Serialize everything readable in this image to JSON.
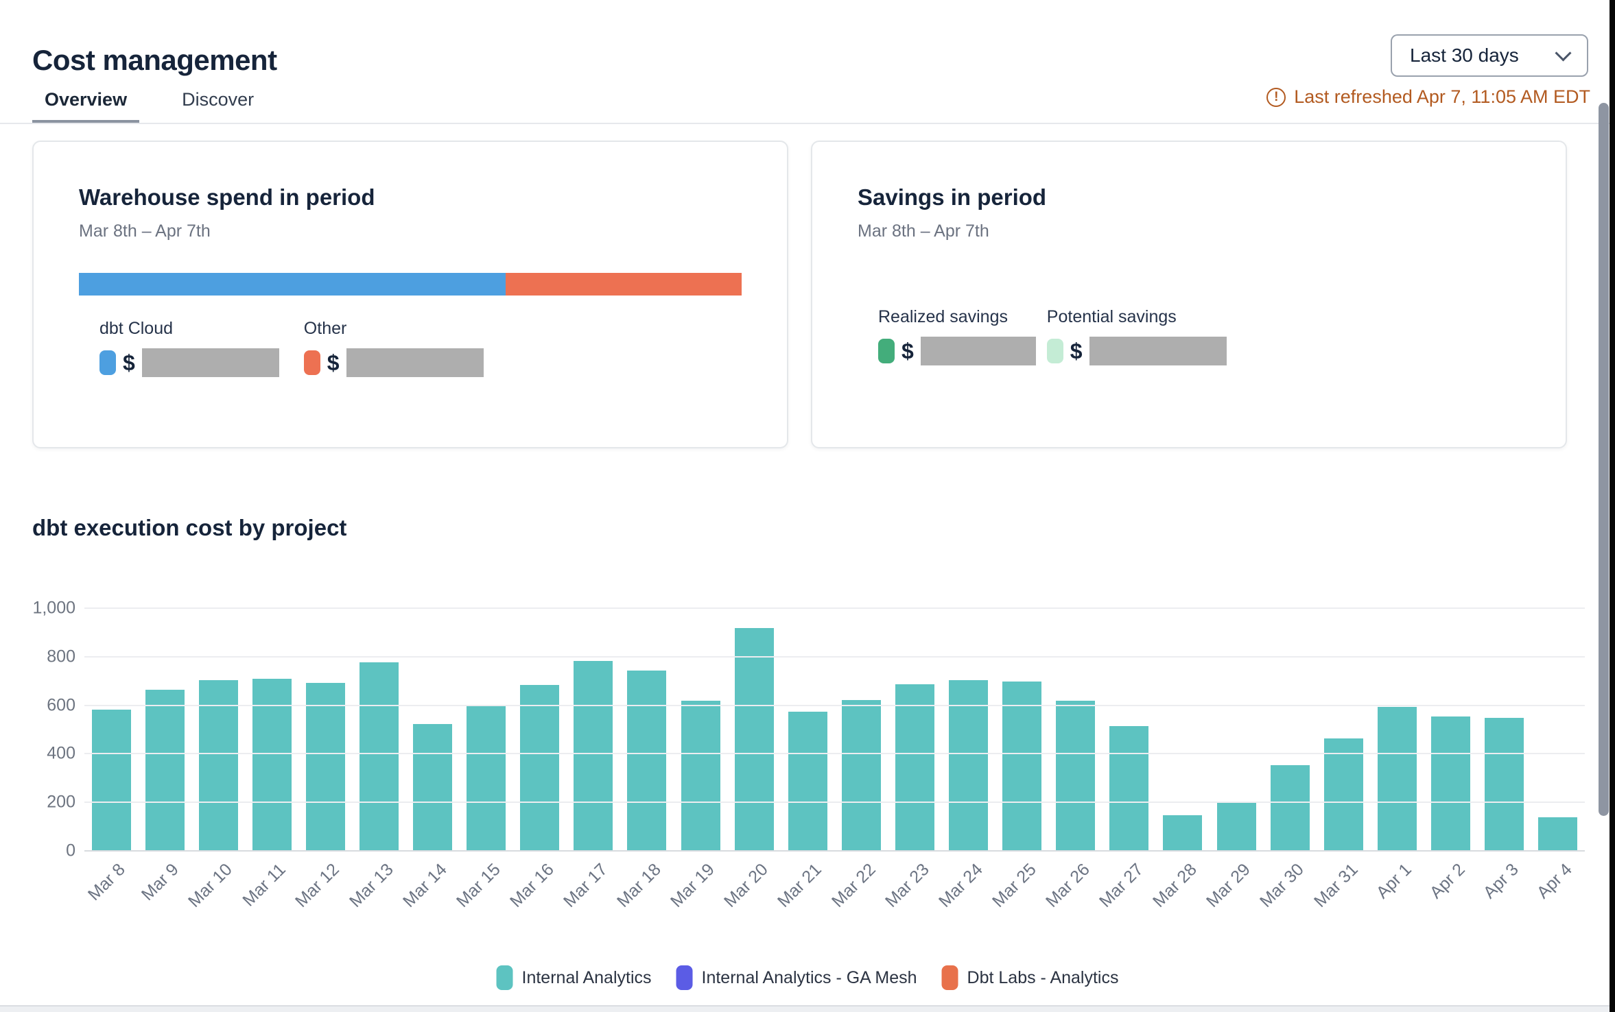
{
  "header": {
    "title": "Cost management",
    "tabs": [
      {
        "label": "Overview",
        "active": true
      },
      {
        "label": "Discover",
        "active": false
      }
    ],
    "date_range_selector": {
      "value": "Last 30 days"
    },
    "last_refreshed": "Last refreshed Apr 7, 11:05 AM EDT",
    "last_refreshed_color": "#b25a20",
    "refresh_icon": "circle-exclamation"
  },
  "cards": {
    "warehouse": {
      "title": "Warehouse spend in period",
      "period": "Mar 8th – Apr 7th",
      "segments": [
        {
          "label": "dbt Cloud",
          "color": "#4d9fe0",
          "percent": 64.4,
          "value_prefix": "$",
          "value_hidden": true
        },
        {
          "label": "Other",
          "color": "#ed7152",
          "percent": 35.6,
          "value_prefix": "$",
          "value_hidden": true
        }
      ]
    },
    "savings": {
      "title": "Savings in period",
      "period": "Mar 8th – Apr 7th",
      "items": [
        {
          "label": "Realized savings",
          "color": "#43ad7b",
          "value_prefix": "$",
          "value_hidden": true
        },
        {
          "label": "Potential savings",
          "color": "#c4ecd5",
          "value_prefix": "$",
          "value_hidden": true
        }
      ]
    }
  },
  "section_title": "dbt execution cost by project",
  "chart_data": {
    "type": "bar",
    "title": "dbt execution cost by project",
    "categories": [
      "Mar 8",
      "Mar 9",
      "Mar 10",
      "Mar 11",
      "Mar 12",
      "Mar 13",
      "Mar 14",
      "Mar 15",
      "Mar 16",
      "Mar 17",
      "Mar 18",
      "Mar 19",
      "Mar 20",
      "Mar 21",
      "Mar 22",
      "Mar 23",
      "Mar 24",
      "Mar 25",
      "Mar 26",
      "Mar 27",
      "Mar 28",
      "Mar 29",
      "Mar 30",
      "Mar 31",
      "Apr 1",
      "Apr 2",
      "Apr 3",
      "Apr 4"
    ],
    "series": [
      {
        "name": "Internal Analytics",
        "color": "#5dc3c1",
        "values": [
          580,
          660,
          700,
          705,
          690,
          775,
          520,
          595,
          680,
          780,
          740,
          615,
          915,
          570,
          620,
          685,
          700,
          695,
          615,
          510,
          145,
          195,
          350,
          460,
          590,
          550,
          545,
          135
        ]
      }
    ],
    "legend": [
      {
        "label": "Internal Analytics",
        "color": "#5dc3c1"
      },
      {
        "label": "Internal Analytics - GA Mesh",
        "color": "#5b5ce5"
      },
      {
        "label": "Dbt Labs - Analytics",
        "color": "#e8714b"
      }
    ],
    "xlabel": "",
    "ylabel": "",
    "ylim": [
      0,
      1000
    ],
    "yticks": [
      0,
      200,
      400,
      600,
      800,
      1000
    ],
    "ytick_labels": [
      "0",
      "200",
      "400",
      "600",
      "800",
      "1,000"
    ],
    "grid": true,
    "legend_position": "bottom"
  }
}
